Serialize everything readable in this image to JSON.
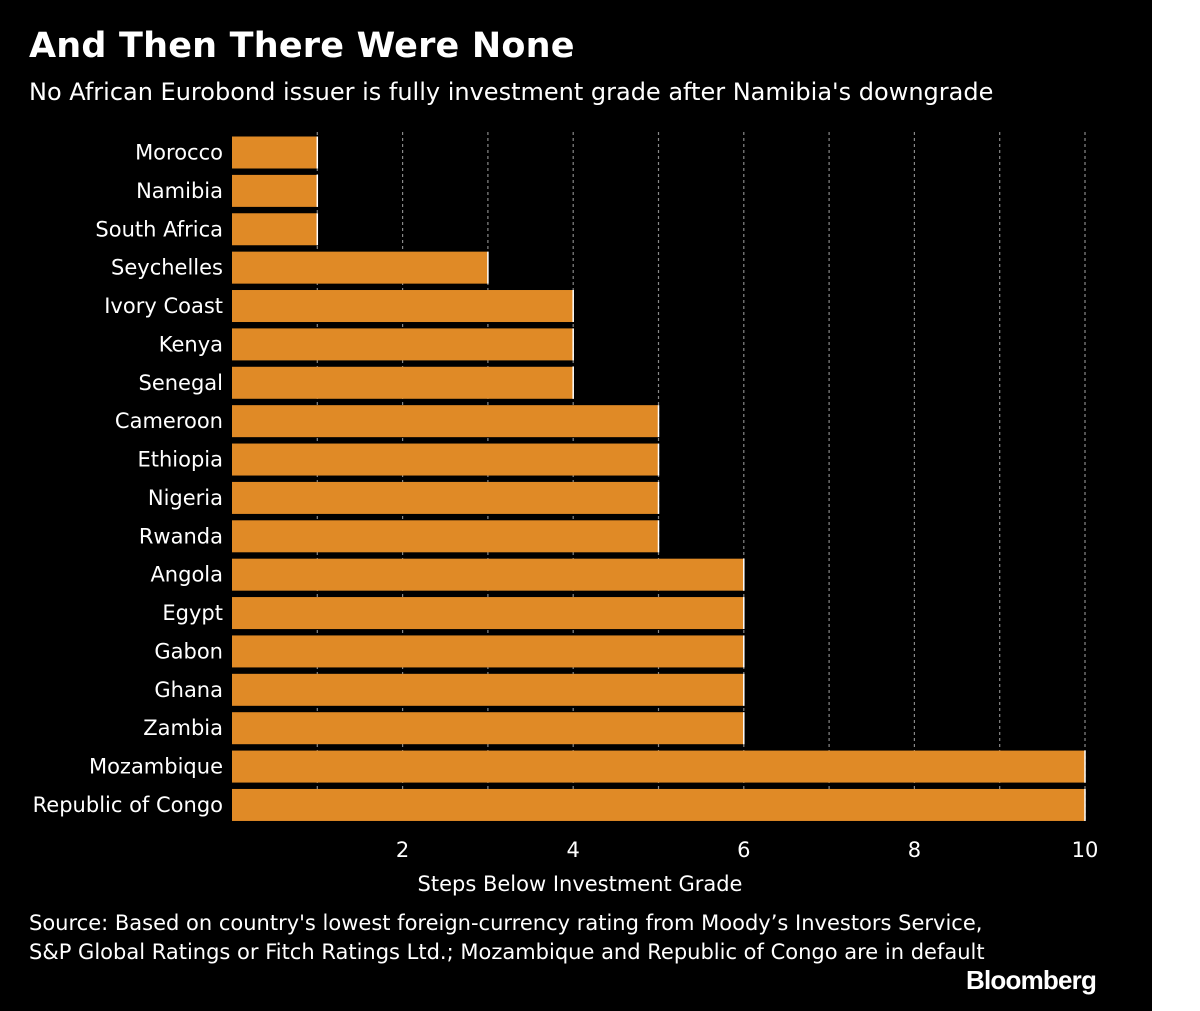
{
  "header": {
    "title": "And Then There Were None",
    "subtitle": "No African Eurobond issuer is fully investment grade after Namibia's downgrade"
  },
  "footer": {
    "source": "Source: Based on country's lowest foreign-currency rating from Moody’s Investors Service, S&P Global Ratings or Fitch Ratings Ltd.; Mozambique and Republic of Congo are in default",
    "logo": "Bloomberg"
  },
  "colors": {
    "background": "#000000",
    "bar": "#e08a26",
    "bar_edge": "#ffffff",
    "grid": "#888888",
    "text": "#ffffff"
  },
  "chart_data": {
    "type": "bar",
    "orientation": "horizontal",
    "title": "And Then There Were None",
    "subtitle": "No African Eurobond issuer is fully investment grade after Namibia's downgrade",
    "xlabel": "Steps Below Investment Grade",
    "ylabel": "",
    "xlim": [
      0,
      10
    ],
    "x_ticks": [
      2,
      4,
      6,
      8,
      10
    ],
    "grid": "vertical dotted lines at each integer step",
    "categories": [
      "Morocco",
      "Namibia",
      "South Africa",
      "Seychelles",
      "Ivory Coast",
      "Kenya",
      "Senegal",
      "Cameroon",
      "Ethiopia",
      "Nigeria",
      "Rwanda",
      "Angola",
      "Egypt",
      "Gabon",
      "Ghana",
      "Zambia",
      "Mozambique",
      "Republic of Congo"
    ],
    "values": [
      1,
      1,
      1,
      3,
      4,
      4,
      4,
      5,
      5,
      5,
      5,
      6,
      6,
      6,
      6,
      6,
      10,
      10
    ]
  }
}
